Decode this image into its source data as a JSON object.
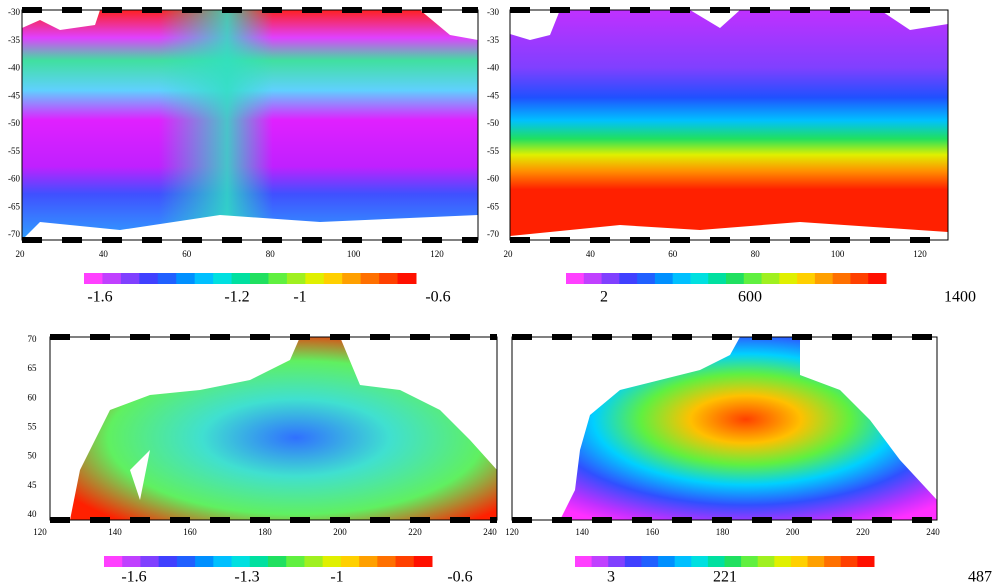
{
  "panels": [
    {
      "y_ticks": [
        "-30",
        "-35",
        "-40",
        "-45",
        "-50",
        "-55",
        "-60",
        "-65",
        "-70"
      ],
      "x_ticks": [
        "20",
        "40",
        "60",
        "80",
        "100",
        "120"
      ],
      "colorbar_labels": [
        "-1.6",
        "-1.2",
        "-1",
        "-0.6"
      ]
    },
    {
      "y_ticks": [
        "-30",
        "-35",
        "-40",
        "-45",
        "-50",
        "-55",
        "-60",
        "-65",
        "-70"
      ],
      "x_ticks": [
        "20",
        "40",
        "60",
        "80",
        "100",
        "120"
      ],
      "colorbar_labels": [
        "2",
        "600",
        "1400"
      ]
    },
    {
      "y_ticks": [
        "70",
        "65",
        "60",
        "55",
        "50",
        "45",
        "40"
      ],
      "x_ticks": [
        "120",
        "140",
        "160",
        "180",
        "200",
        "220",
        "240"
      ],
      "colorbar_labels": [
        "-1.6",
        "-1.3",
        "-1",
        "-0.6"
      ]
    },
    {
      "y_ticks": [],
      "x_ticks": [
        "120",
        "140",
        "160",
        "180",
        "200",
        "220",
        "240"
      ],
      "colorbar_labels": [
        "3",
        "221",
        "487"
      ]
    }
  ]
}
